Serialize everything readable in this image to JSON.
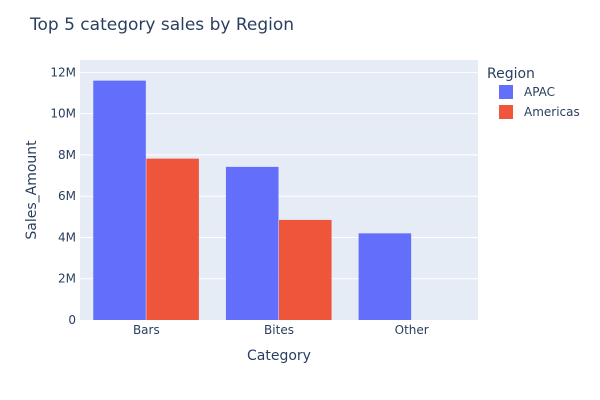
{
  "chart_data": {
    "type": "bar",
    "title": "Top 5 category sales by Region",
    "xlabel": "Category",
    "ylabel": "Sales_Amount",
    "categories": [
      "Bars",
      "Bites",
      "Other"
    ],
    "series": [
      {
        "name": "APAC",
        "color": "#636efa",
        "values": [
          11600000,
          7420000,
          4200000
        ]
      },
      {
        "name": "Americas",
        "color": "#ef553b",
        "values": [
          7820000,
          4850000,
          null
        ]
      }
    ],
    "ylim": [
      0,
      12600000
    ],
    "yticks": [
      0,
      2000000,
      4000000,
      6000000,
      8000000,
      10000000,
      12000000
    ],
    "ytick_labels": [
      "0",
      "2M",
      "4M",
      "6M",
      "8M",
      "10M",
      "12M"
    ],
    "legend_title": "Region",
    "legend_position": "top-right",
    "grid": true,
    "colors": {
      "plot_background": "#e5ecf6",
      "gridline": "#ffffff",
      "text": "#2a3f5f"
    }
  }
}
